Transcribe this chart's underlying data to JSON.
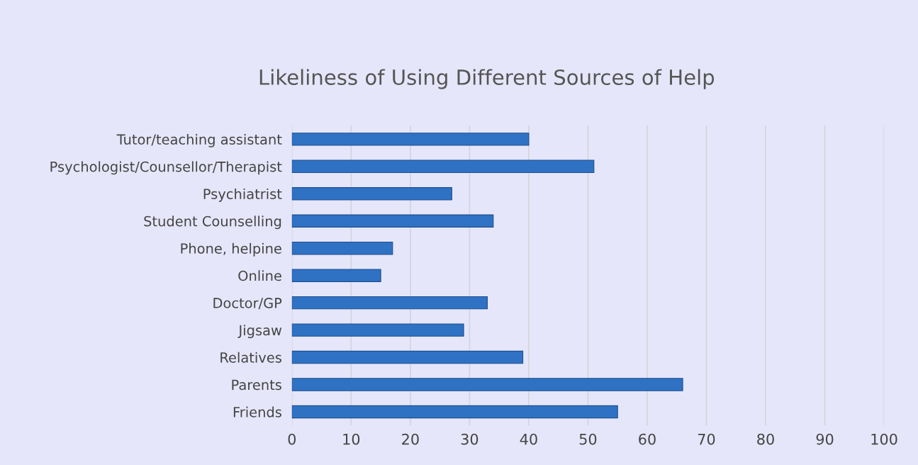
{
  "chart_data": {
    "type": "bar",
    "orientation": "horizontal",
    "title": "Likeliness of Using Different Sources of Help",
    "categories": [
      "Tutor/teaching assistant",
      "Psychologist/Counsellor/Therapist",
      "Psychiatrist",
      "Student Counselling",
      "Phone, helpine",
      "Online",
      "Doctor/GP",
      "Jigsaw",
      "Relatives",
      "Parents",
      "Friends"
    ],
    "values": [
      40,
      51,
      27,
      34,
      17,
      15,
      33,
      29,
      39,
      66,
      55
    ],
    "color": "#2f72c4",
    "xlim": [
      0,
      100
    ],
    "xticks": [
      0,
      10,
      20,
      30,
      40,
      50,
      60,
      70,
      80,
      90,
      100
    ],
    "grid": "x",
    "legend": false
  }
}
